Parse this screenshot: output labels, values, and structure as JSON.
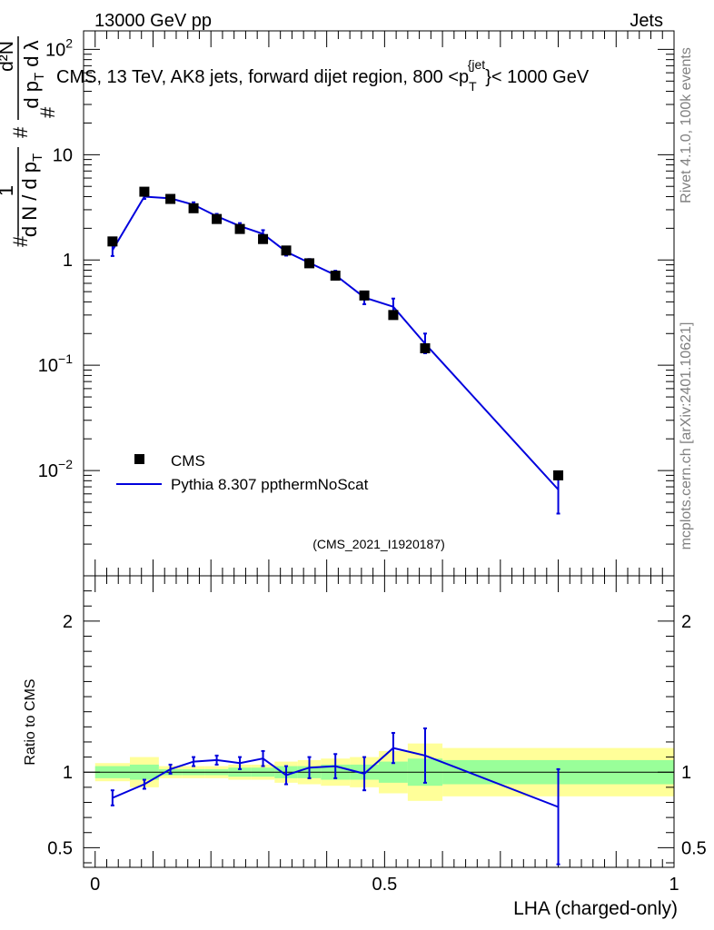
{
  "header": {
    "left": "13000 GeV pp",
    "right": "Jets"
  },
  "side_text": {
    "rivet": "Rivet 4.1.0,  100k events",
    "mcplots": "mcplots.cern.ch [arXiv:2401.10621]"
  },
  "chart_data": [
    {
      "type": "scatter",
      "title": "CMS, 13 TeV, AK8 jets, forward dijet region, 800 <p_T^{jet}< 1000 GeV",
      "title_parts": {
        "before": "CMS, 13 TeV, AK8 jets, forward dijet region, 800 <p",
        "sub": "T",
        "sup": "{jet",
        "after": "}< 1000 GeV"
      },
      "ylabel": "1/N dN/dλ",
      "ylabel_parts": {
        "outer_num": "1",
        "outer_den": "d N / d p",
        "outer_den_sub": "T",
        "inner_num": "d²N",
        "inner_den": "d p",
        "inner_den_sub": "T",
        "inner_den_tail": "d λ",
        "hash": "#"
      },
      "yscale": "log",
      "ylim": [
        0.001,
        150
      ],
      "xlim": [
        -0.02,
        1.0
      ],
      "ytick_labels": [
        {
          "value": 100,
          "base": "10",
          "exp": "2"
        },
        {
          "value": 10,
          "base": "10",
          "exp": ""
        },
        {
          "value": 1,
          "base": "1",
          "exp": ""
        },
        {
          "value": 0.1,
          "base": "10",
          "exp": "−1"
        },
        {
          "value": 0.01,
          "base": "10",
          "exp": "−2"
        }
      ],
      "watermark": "(CMS_2021_I1920187)",
      "legend_position": "lower-left",
      "legend": [
        {
          "name": "CMS",
          "marker": "square",
          "color": "#000000"
        },
        {
          "name": "Pythia 8.307 ppthermNoScat",
          "marker": "line",
          "color": "#0000dd"
        }
      ],
      "series": [
        {
          "name": "CMS",
          "x": [
            0.03,
            0.085,
            0.13,
            0.17,
            0.21,
            0.25,
            0.29,
            0.33,
            0.37,
            0.415,
            0.465,
            0.515,
            0.57,
            0.8
          ],
          "y": [
            1.5,
            4.45,
            3.8,
            3.1,
            2.45,
            1.97,
            1.58,
            1.23,
            0.93,
            0.71,
            0.46,
            0.3,
            0.145,
            0.009
          ]
        },
        {
          "name": "Pythia 8.307 ppthermNoScat",
          "x": [
            0.03,
            0.085,
            0.13,
            0.17,
            0.21,
            0.25,
            0.29,
            0.33,
            0.37,
            0.415,
            0.465,
            0.515,
            0.57,
            0.8
          ],
          "y": [
            1.24,
            4.0,
            3.85,
            3.35,
            2.6,
            2.1,
            1.77,
            1.2,
            0.94,
            0.72,
            0.44,
            0.36,
            0.16,
            0.0066
          ],
          "yerr_low": [
            0.15,
            0.2,
            0.15,
            0.18,
            0.14,
            0.14,
            0.15,
            0.1,
            0.08,
            0.07,
            0.06,
            0.05,
            0.03,
            0.0027
          ],
          "yerr_high": [
            0.15,
            0.2,
            0.15,
            0.18,
            0.14,
            0.14,
            0.15,
            0.1,
            0.08,
            0.07,
            0.06,
            0.07,
            0.04,
            0.0027
          ]
        }
      ]
    },
    {
      "type": "line",
      "ylabel": "Ratio to CMS",
      "xlabel": "LHA (charged-only)",
      "xlim": [
        -0.02,
        1.0
      ],
      "ylim": [
        0.37,
        2.3
      ],
      "xticks": [
        0,
        0.5,
        1
      ],
      "xtick_labels": [
        "0",
        "0.5",
        "1"
      ],
      "yticks": [
        0.5,
        1,
        2
      ],
      "ytick_labels": [
        "0.5",
        "1",
        "2"
      ],
      "band_colors": {
        "inner": "#99ff99",
        "outer": "#ffff99"
      },
      "bands": [
        {
          "x0": 0.0,
          "x1": 0.06,
          "inner_lo": 0.96,
          "inner_hi": 1.04,
          "outer_lo": 0.94,
          "outer_hi": 1.06
        },
        {
          "x0": 0.06,
          "x1": 0.11,
          "inner_lo": 0.95,
          "inner_hi": 1.05,
          "outer_lo": 0.9,
          "outer_hi": 1.1
        },
        {
          "x0": 0.11,
          "x1": 0.15,
          "inner_lo": 0.98,
          "inner_hi": 1.02,
          "outer_lo": 0.96,
          "outer_hi": 1.04
        },
        {
          "x0": 0.15,
          "x1": 0.19,
          "inner_lo": 0.98,
          "inner_hi": 1.02,
          "outer_lo": 0.96,
          "outer_hi": 1.04
        },
        {
          "x0": 0.19,
          "x1": 0.23,
          "inner_lo": 0.98,
          "inner_hi": 1.02,
          "outer_lo": 0.96,
          "outer_hi": 1.04
        },
        {
          "x0": 0.23,
          "x1": 0.27,
          "inner_lo": 0.97,
          "inner_hi": 1.03,
          "outer_lo": 0.95,
          "outer_hi": 1.05
        },
        {
          "x0": 0.27,
          "x1": 0.31,
          "inner_lo": 0.97,
          "inner_hi": 1.03,
          "outer_lo": 0.95,
          "outer_hi": 1.05
        },
        {
          "x0": 0.31,
          "x1": 0.35,
          "inner_lo": 0.96,
          "inner_hi": 1.04,
          "outer_lo": 0.93,
          "outer_hi": 1.07
        },
        {
          "x0": 0.35,
          "x1": 0.39,
          "inner_lo": 0.96,
          "inner_hi": 1.04,
          "outer_lo": 0.92,
          "outer_hi": 1.08
        },
        {
          "x0": 0.39,
          "x1": 0.44,
          "inner_lo": 0.95,
          "inner_hi": 1.05,
          "outer_lo": 0.91,
          "outer_hi": 1.09
        },
        {
          "x0": 0.44,
          "x1": 0.49,
          "inner_lo": 0.95,
          "inner_hi": 1.05,
          "outer_lo": 0.9,
          "outer_hi": 1.1
        },
        {
          "x0": 0.49,
          "x1": 0.54,
          "inner_lo": 0.93,
          "inner_hi": 1.07,
          "outer_lo": 0.86,
          "outer_hi": 1.14
        },
        {
          "x0": 0.54,
          "x1": 0.6,
          "inner_lo": 0.91,
          "inner_hi": 1.09,
          "outer_lo": 0.81,
          "outer_hi": 1.19
        },
        {
          "x0": 0.6,
          "x1": 1.0,
          "inner_lo": 0.92,
          "inner_hi": 1.08,
          "outer_lo": 0.84,
          "outer_hi": 1.16
        }
      ],
      "series": [
        {
          "name": "Pythia 8.307 ppthermNoScat / CMS",
          "x": [
            0.03,
            0.085,
            0.13,
            0.17,
            0.21,
            0.25,
            0.29,
            0.33,
            0.37,
            0.415,
            0.465,
            0.515,
            0.57,
            0.8
          ],
          "y": [
            0.83,
            0.92,
            1.02,
            1.07,
            1.08,
            1.06,
            1.09,
            0.98,
            1.03,
            1.04,
            0.99,
            1.16,
            1.11,
            0.77
          ],
          "yerr_low": [
            0.05,
            0.03,
            0.03,
            0.03,
            0.03,
            0.04,
            0.05,
            0.06,
            0.07,
            0.08,
            0.11,
            0.1,
            0.18,
            0.38
          ],
          "yerr_high": [
            0.05,
            0.03,
            0.03,
            0.03,
            0.03,
            0.04,
            0.05,
            0.06,
            0.07,
            0.08,
            0.11,
            0.1,
            0.18,
            0.25
          ]
        }
      ]
    }
  ]
}
